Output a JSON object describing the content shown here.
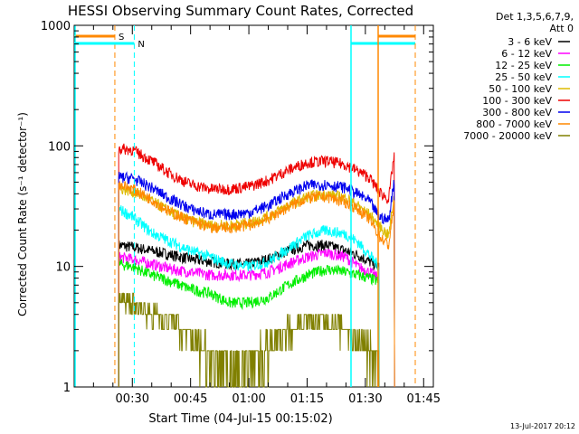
{
  "chart_data": {
    "type": "line",
    "title": "HESSI Observing Summary Count Rates, Corrected",
    "xlabel": "Start Time (04-Jul-15 00:15:02)",
    "ylabel": "Corrected Count Rate (s⁻¹ detector⁻¹)",
    "y_scale": "log",
    "ylim": [
      1,
      1000
    ],
    "xlim_minutes": [
      15.03,
      107.5
    ],
    "x_tick_labels": [
      "00:30",
      "00:45",
      "01:00",
      "01:15",
      "01:30",
      "01:45"
    ],
    "x_tick_minutes": [
      30,
      45,
      60,
      75,
      90,
      105
    ],
    "y_tick_labels": [
      "1",
      "10",
      "100",
      "1000"
    ],
    "y_tick_values": [
      1,
      10,
      100,
      1000
    ],
    "legend_header": [
      "Det 1,3,5,6,7,9,",
      "Att 0"
    ],
    "legend_position": "right, outside plot",
    "grid": false,
    "series": [
      {
        "name": "3 - 6 keV",
        "color": "#000000",
        "x": [
          26.5,
          30,
          35,
          40,
          45,
          50,
          55,
          60,
          65,
          70,
          75,
          80,
          85,
          88,
          91,
          93.5
        ],
        "y": [
          15,
          14.5,
          13.5,
          12.5,
          11.5,
          11,
          10.5,
          10.5,
          11.5,
          13.5,
          15,
          15,
          13.5,
          12.5,
          11,
          10
        ]
      },
      {
        "name": "6 - 12 keV",
        "color": "#ff00ff",
        "x": [
          26.5,
          30,
          35,
          40,
          45,
          50,
          55,
          60,
          65,
          70,
          75,
          80,
          85,
          88,
          91,
          93.5
        ],
        "y": [
          12,
          11.5,
          10.5,
          9.5,
          9,
          8.5,
          8.5,
          8.5,
          9,
          10.5,
          12,
          13,
          12,
          10,
          9,
          8
        ]
      },
      {
        "name": "12 - 25 keV",
        "color": "#00ee00",
        "x": [
          26.5,
          30,
          35,
          40,
          45,
          50,
          55,
          60,
          65,
          70,
          75,
          80,
          85,
          88,
          91,
          93.5
        ],
        "y": [
          10.5,
          10,
          8.5,
          7.5,
          6.5,
          6,
          5,
          5,
          5.5,
          7,
          8.5,
          9.5,
          9,
          8.5,
          8,
          7.5
        ]
      },
      {
        "name": "25 - 50 keV",
        "color": "#00ffff",
        "x": [
          26.5,
          30,
          35,
          40,
          45,
          50,
          55,
          60,
          65,
          70,
          75,
          80,
          85,
          88,
          91,
          93.5
        ],
        "y": [
          30,
          26,
          19,
          16,
          13.5,
          12,
          10.5,
          10,
          11,
          14,
          18,
          20,
          18.5,
          16,
          12.5,
          10
        ]
      },
      {
        "name": "50 - 100 keV",
        "color": "#ddbb00",
        "x": [
          26.5,
          30,
          35,
          40,
          45,
          50,
          55,
          60,
          65,
          70,
          75,
          80,
          85,
          88,
          91,
          93.5,
          96,
          97.5
        ],
        "y": [
          45,
          42,
          35,
          28,
          24,
          22,
          22,
          23,
          26,
          32,
          38,
          40,
          37,
          32,
          27,
          22,
          18,
          40
        ]
      },
      {
        "name": "100 - 300 keV",
        "color": "#ee0000",
        "x": [
          26.5,
          30,
          35,
          40,
          45,
          50,
          55,
          60,
          65,
          70,
          75,
          80,
          85,
          88,
          91,
          93.5,
          96,
          97.5
        ],
        "y": [
          95,
          93,
          75,
          58,
          48,
          44,
          44,
          46,
          52,
          63,
          73,
          75,
          70,
          62,
          55,
          42,
          36,
          90
        ]
      },
      {
        "name": "300 - 800 keV",
        "color": "#0000ee",
        "x": [
          26.5,
          30,
          35,
          40,
          45,
          50,
          55,
          60,
          65,
          70,
          75,
          80,
          85,
          88,
          91,
          93.5,
          96,
          97.5
        ],
        "y": [
          55,
          54,
          45,
          36,
          30,
          27,
          27,
          28,
          32,
          40,
          47,
          48,
          45,
          40,
          35,
          26,
          24,
          55
        ]
      },
      {
        "name": "800 - 7000 keV",
        "color": "#ff8800",
        "x": [
          26.5,
          30,
          35,
          40,
          45,
          50,
          55,
          60,
          65,
          70,
          75,
          80,
          85,
          88,
          91,
          93.5,
          96,
          97.5
        ],
        "y": [
          48,
          44,
          36,
          28,
          24,
          21,
          21,
          22,
          25,
          31,
          37,
          38,
          34,
          30,
          25,
          18,
          15,
          35
        ]
      },
      {
        "name": "7000 - 20000 keV",
        "color": "#808000",
        "x": [
          26.5,
          30,
          35,
          40,
          45,
          50,
          55,
          60,
          65,
          70,
          75,
          80,
          85,
          88,
          91,
          93.5
        ],
        "y": [
          5.5,
          5,
          4,
          3.5,
          2.5,
          2,
          1.5,
          1.5,
          2,
          3,
          3.5,
          3.5,
          3,
          2.5,
          2,
          1.5
        ]
      }
    ],
    "annotations": [
      {
        "label": "S",
        "color": "#ff8800",
        "x_minutes": 25.5
      },
      {
        "label": "N",
        "color": "#00ffff",
        "x_minutes": 30.5
      }
    ],
    "timestamp": "13-Jul-2017 20:12"
  }
}
